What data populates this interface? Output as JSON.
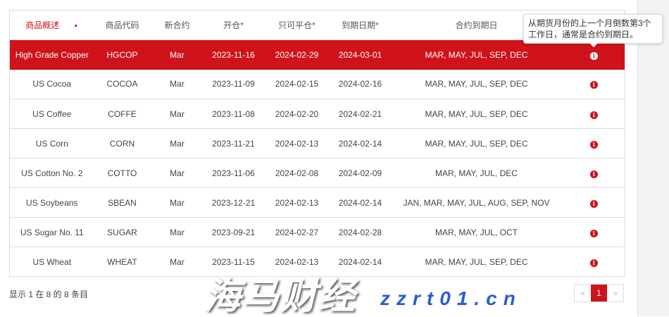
{
  "table": {
    "headers": [
      "商品概述",
      "商品代码",
      "新合约",
      "开仓*",
      "只可平仓*",
      "到期日期*",
      "合约到期日",
      ""
    ],
    "sort_indicator": "▲",
    "rows": [
      {
        "name": "High Grade Copper",
        "code": "HGCOP",
        "new": "Mar",
        "open": "2023-11-16",
        "close_only": "2024-02-29",
        "expiry": "2024-03-01",
        "months": "MAR, MAY, JUL, SEP, DEC",
        "highlighted": true
      },
      {
        "name": "US Cocoa",
        "code": "COCOA",
        "new": "Mar",
        "open": "2023-11-09",
        "close_only": "2024-02-15",
        "expiry": "2024-02-16",
        "months": "MAR, MAY, JUL, SEP, DEC"
      },
      {
        "name": "US Coffee",
        "code": "COFFE",
        "new": "Mar",
        "open": "2023-11-08",
        "close_only": "2024-02-20",
        "expiry": "2024-02-21",
        "months": "MAR, MAY, JUL, SEP, DEC"
      },
      {
        "name": "US Corn",
        "code": "CORN",
        "new": "Mar",
        "open": "2023-11-21",
        "close_only": "2024-02-13",
        "expiry": "2024-02-14",
        "months": "MAR, MAY, JUL, SEP, DEC"
      },
      {
        "name": "US Cotton No. 2",
        "code": "COTTO",
        "new": "Mar",
        "open": "2023-11-06",
        "close_only": "2024-02-08",
        "expiry": "2024-02-09",
        "months": "MAR, MAY, JUL, DEC"
      },
      {
        "name": "US Soybeans",
        "code": "SBEAN",
        "new": "Mar",
        "open": "2023-12-21",
        "close_only": "2024-02-13",
        "expiry": "2024-02-14",
        "months": "JAN, MAR, MAY, JUL, AUG, SEP, NOV"
      },
      {
        "name": "US Sugar No. 11",
        "code": "SUGAR",
        "new": "Mar",
        "open": "2023-09-21",
        "close_only": "2024-02-27",
        "expiry": "2024-02-28",
        "months": "MAR, MAY, JUL, OCT"
      },
      {
        "name": "US Wheat",
        "code": "WHEAT",
        "new": "Mar",
        "open": "2023-11-15",
        "close_only": "2024-02-13",
        "expiry": "2024-02-14",
        "months": "MAR, MAY, JUL, SEP, DEC"
      }
    ]
  },
  "tooltip": "从期货月份的上一个月倒数第3个工作日，通常是合约到期日。",
  "footer": "显示 1 在 8 的 8 条目",
  "pager": {
    "prev": "«",
    "current": "1",
    "next": "»"
  },
  "watermark": {
    "title": "海马财经",
    "url": "zzrt01.cn"
  },
  "colors": {
    "accent": "#d0121b"
  }
}
